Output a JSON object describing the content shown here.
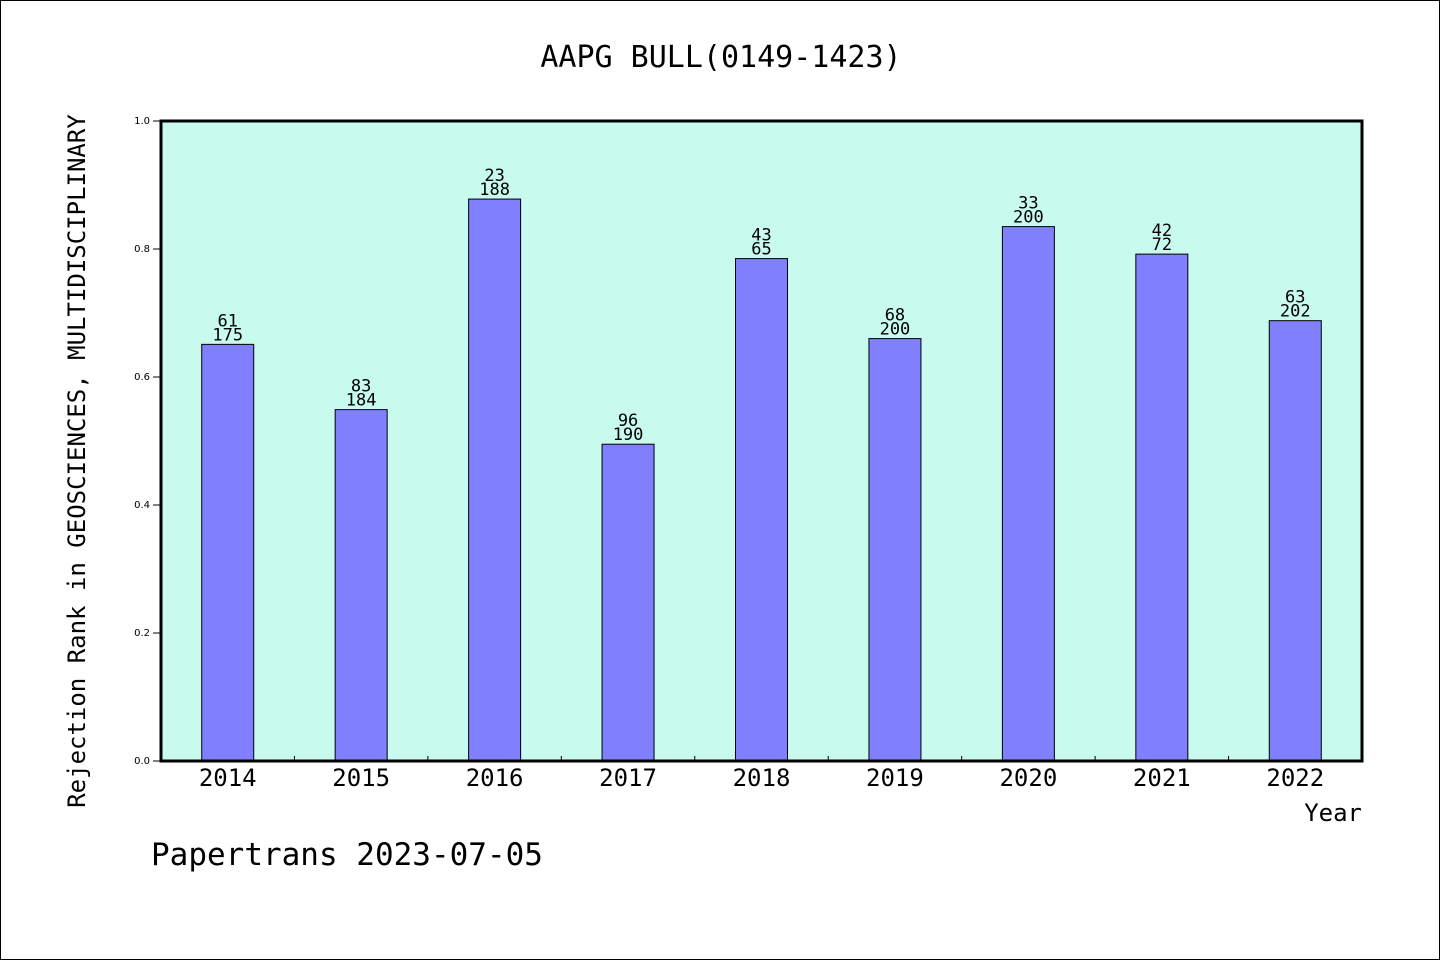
{
  "chart_data": {
    "type": "bar",
    "title": "AAPG BULL(0149-1423)",
    "xlabel": "Year",
    "ylabel": "Rejection Rank in GEOSCIENCES, MULTIDISCIPLINARY",
    "footer": "Papertrans 2023-07-05",
    "categories": [
      "2014",
      "2015",
      "2016",
      "2017",
      "2018",
      "2019",
      "2020",
      "2021",
      "2022"
    ],
    "values": [
      0.651,
      0.549,
      0.878,
      0.495,
      0.785,
      0.66,
      0.835,
      0.792,
      0.688
    ],
    "ranks": [
      "61",
      "83",
      "23",
      "96",
      "43",
      "68",
      "33",
      "42",
      "63"
    ],
    "totals": [
      "175",
      "184",
      "188",
      "190",
      "65",
      "200",
      "200",
      "72",
      "202"
    ],
    "ylim": [
      0,
      1.0
    ],
    "yticks": [
      "0.0",
      "0.2",
      "0.4",
      "0.6",
      "0.8",
      "1.0"
    ],
    "grid": false,
    "colors": {
      "plot_background": "#c8faee",
      "bar_fill": "#8080ff",
      "bar_stroke": "#000000"
    }
  }
}
